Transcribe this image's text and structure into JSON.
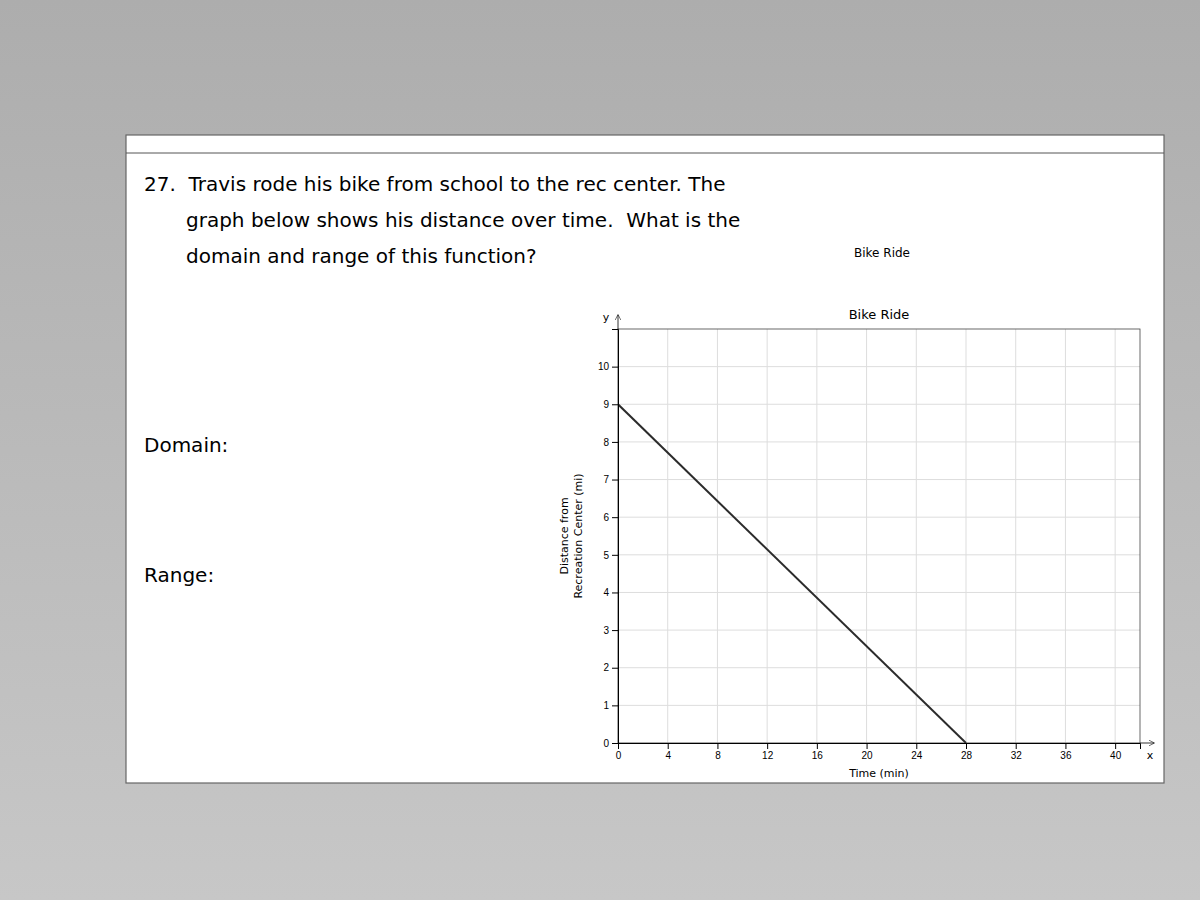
{
  "chart_data": {
    "type": "line",
    "title": "Bike Ride",
    "xlabel": "Time (min)",
    "ylabel": "Distance from\nRecreation Center (mi)",
    "x": [
      0,
      28
    ],
    "values": [
      9,
      0
    ],
    "color": "#2b2b2b",
    "xlim": [
      0,
      42
    ],
    "ylim": [
      0,
      11
    ],
    "xticks": [
      0,
      4,
      8,
      12,
      16,
      20,
      24,
      28,
      32,
      36,
      40
    ],
    "yticks": [
      0,
      1,
      2,
      3,
      4,
      5,
      6,
      7,
      8,
      9,
      10
    ],
    "grid": true,
    "annotations": [
      "27.  Travis rode his bike from school to the rec center. The",
      "graph below shows his distance over time.  What is the",
      "domain and range of this function?",
      "Domain:",
      "Range:",
      "y",
      "x"
    ]
  }
}
